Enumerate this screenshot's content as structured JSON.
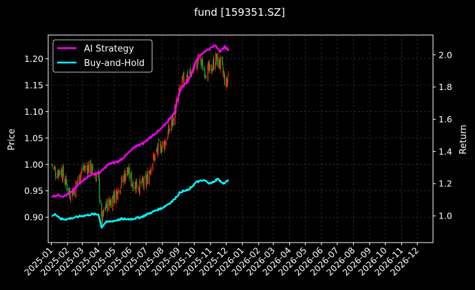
{
  "chart_data": {
    "type": "line",
    "title": "fund [159351.SZ]",
    "ylabel_left": "Price",
    "ylabel_right": "Return",
    "xlim": [
      "2024-12-26",
      "2026-12-31"
    ],
    "ylim_left": [
      0.852,
      1.245
    ],
    "ylim_right": [
      0.834,
      2.123
    ],
    "x_ticks": [
      "2025-01",
      "2025-02",
      "2025-03",
      "2025-04",
      "2025-05",
      "2025-06",
      "2025-07",
      "2025-08",
      "2025-09",
      "2025-10",
      "2025-11",
      "2025-12",
      "2026-01",
      "2026-02",
      "2026-03",
      "2026-04",
      "2026-05",
      "2026-06",
      "2026-07",
      "2026-08",
      "2026-09",
      "2026-10",
      "2026-11",
      "2026-12"
    ],
    "y_ticks_left": [
      "0.90",
      "0.95",
      "1.00",
      "1.05",
      "1.10",
      "1.15",
      "1.20"
    ],
    "y_ticks_right": [
      "1.0",
      "1.2",
      "1.4",
      "1.6",
      "1.8",
      "2.0"
    ],
    "legend": {
      "position": "top-left",
      "entries": [
        "AI Strategy",
        "Buy-and-Hold"
      ]
    },
    "grid": true,
    "colors": {
      "ai": "#ff00ff",
      "bh": "#00ffff",
      "up": "#ff2a1a",
      "down": "#1fa31f"
    },
    "candles": {
      "description_points": [
        [
          "2025-01-02",
          1.0
        ],
        [
          "2025-01-10",
          0.985
        ],
        [
          "2025-01-20",
          0.99
        ],
        [
          "2025-02-05",
          0.945
        ],
        [
          "2025-02-15",
          0.955
        ],
        [
          "2025-03-01",
          0.99
        ],
        [
          "2025-03-10",
          0.995
        ],
        [
          "2025-03-20",
          0.99
        ],
        [
          "2025-04-01",
          0.975
        ],
        [
          "2025-04-07",
          0.89
        ],
        [
          "2025-04-15",
          0.92
        ],
        [
          "2025-05-01",
          0.94
        ],
        [
          "2025-05-15",
          0.965
        ],
        [
          "2025-05-25",
          0.99
        ],
        [
          "2025-06-05",
          0.965
        ],
        [
          "2025-06-20",
          0.96
        ],
        [
          "2025-07-01",
          0.965
        ],
        [
          "2025-07-10",
          1.0
        ],
        [
          "2025-07-25",
          1.03
        ],
        [
          "2025-08-05",
          1.04
        ],
        [
          "2025-08-20",
          1.08
        ],
        [
          "2025-09-01",
          1.13
        ],
        [
          "2025-09-10",
          1.16
        ],
        [
          "2025-09-20",
          1.17
        ],
        [
          "2025-10-01",
          1.18
        ],
        [
          "2025-10-10",
          1.2
        ],
        [
          "2025-10-20",
          1.18
        ],
        [
          "2025-11-01",
          1.175
        ],
        [
          "2025-11-10",
          1.2
        ],
        [
          "2025-11-20",
          1.19
        ],
        [
          "2025-12-01",
          1.15
        ],
        [
          "2025-12-05",
          1.17
        ]
      ]
    },
    "series": [
      {
        "name": "AI Strategy",
        "axis": "right",
        "points": [
          [
            "2025-01-02",
            1.12
          ],
          [
            "2025-01-15",
            1.13
          ],
          [
            "2025-01-25",
            1.12
          ],
          [
            "2025-02-10",
            1.15
          ],
          [
            "2025-03-01",
            1.22
          ],
          [
            "2025-03-20",
            1.26
          ],
          [
            "2025-04-05",
            1.27
          ],
          [
            "2025-04-20",
            1.32
          ],
          [
            "2025-05-10",
            1.34
          ],
          [
            "2025-05-25",
            1.38
          ],
          [
            "2025-06-10",
            1.43
          ],
          [
            "2025-06-25",
            1.45
          ],
          [
            "2025-07-10",
            1.49
          ],
          [
            "2025-07-25",
            1.53
          ],
          [
            "2025-08-10",
            1.58
          ],
          [
            "2025-08-25",
            1.65
          ],
          [
            "2025-09-05",
            1.79
          ],
          [
            "2025-09-20",
            1.84
          ],
          [
            "2025-10-05",
            1.97
          ],
          [
            "2025-10-20",
            2.02
          ],
          [
            "2025-11-01",
            2.04
          ],
          [
            "2025-11-10",
            2.06
          ],
          [
            "2025-11-20",
            2.02
          ],
          [
            "2025-11-28",
            2.05
          ],
          [
            "2025-12-05",
            2.03
          ]
        ]
      },
      {
        "name": "Buy-and-Hold",
        "axis": "right",
        "points": [
          [
            "2025-01-02",
            1.0
          ],
          [
            "2025-01-10",
            1.01
          ],
          [
            "2025-01-20",
            0.98
          ],
          [
            "2025-02-01",
            0.98
          ],
          [
            "2025-02-15",
            0.99
          ],
          [
            "2025-03-01",
            1.0
          ],
          [
            "2025-03-20",
            1.01
          ],
          [
            "2025-04-01",
            1.01
          ],
          [
            "2025-04-07",
            0.93
          ],
          [
            "2025-04-15",
            0.96
          ],
          [
            "2025-05-01",
            0.97
          ],
          [
            "2025-05-15",
            0.98
          ],
          [
            "2025-06-01",
            0.98
          ],
          [
            "2025-06-20",
            0.99
          ],
          [
            "2025-07-10",
            1.02
          ],
          [
            "2025-08-01",
            1.05
          ],
          [
            "2025-08-20",
            1.09
          ],
          [
            "2025-09-05",
            1.15
          ],
          [
            "2025-09-20",
            1.16
          ],
          [
            "2025-10-05",
            1.21
          ],
          [
            "2025-10-20",
            1.22
          ],
          [
            "2025-11-01",
            1.2
          ],
          [
            "2025-11-15",
            1.23
          ],
          [
            "2025-11-25",
            1.2
          ],
          [
            "2025-12-05",
            1.22
          ]
        ]
      }
    ]
  }
}
